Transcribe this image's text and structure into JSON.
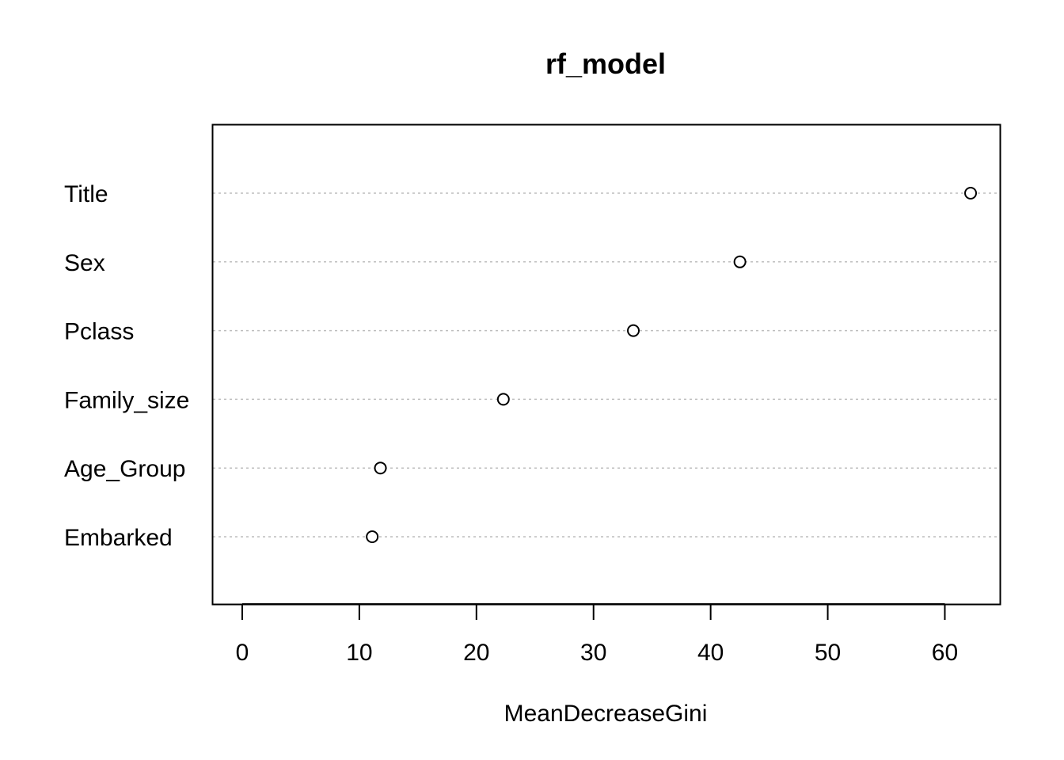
{
  "chart_data": {
    "type": "scatter",
    "subtype": "dotchart",
    "title": "rf_model",
    "xlabel": "MeanDecreaseGini",
    "ylabel": "",
    "xlim": [
      -2.5,
      64.7
    ],
    "x_ticks": [
      0,
      10,
      20,
      30,
      40,
      50,
      60
    ],
    "categories": [
      "Title",
      "Sex",
      "Pclass",
      "Family_size",
      "Age_Group",
      "Embarked"
    ],
    "values": [
      62.2,
      42.5,
      33.4,
      22.3,
      11.8,
      11.1
    ],
    "grid": "dotted horizontal guide lines per category",
    "marker": "open circle",
    "colors": {
      "axis": "#000000",
      "guide": "#bebebe",
      "marker_stroke": "#000000",
      "background": "#ffffff"
    }
  }
}
